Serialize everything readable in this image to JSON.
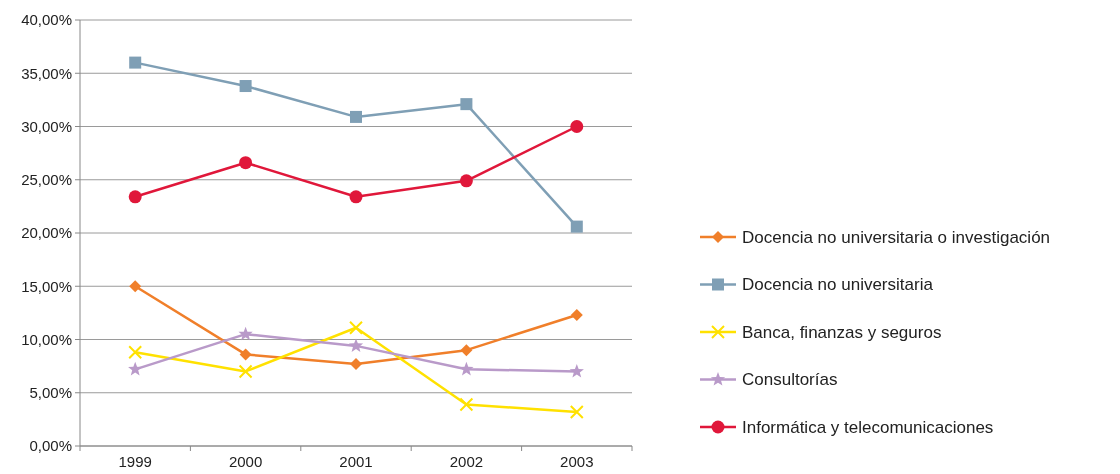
{
  "chart_data": {
    "type": "line",
    "categories": [
      "1999",
      "2000",
      "2001",
      "2002",
      "2003"
    ],
    "series": [
      {
        "name": "Docencia no universitaria o investigación",
        "color": "#f07f2a",
        "marker": "diamond",
        "values": [
          15.0,
          8.6,
          7.7,
          9.0,
          12.3
        ]
      },
      {
        "name": "Docencia no universitaria",
        "color": "#7f9fb5",
        "marker": "square",
        "values": [
          36.0,
          33.8,
          30.9,
          32.1,
          20.6
        ]
      },
      {
        "name": "Banca, finanzas y seguros",
        "color": "#ffe100",
        "marker": "cross",
        "values": [
          8.8,
          7.0,
          11.1,
          3.9,
          3.2
        ]
      },
      {
        "name": "Consultorías",
        "color": "#b99ac9",
        "marker": "star",
        "values": [
          7.2,
          10.5,
          9.4,
          7.2,
          7.0
        ]
      },
      {
        "name": "Informática y telecomunicaciones",
        "color": "#e0173a",
        "marker": "circle",
        "values": [
          23.4,
          26.6,
          23.4,
          24.9,
          30.0
        ]
      }
    ],
    "ylim": [
      0,
      40
    ],
    "yticks": [
      {
        "value": 0,
        "label": "0,00%"
      },
      {
        "value": 5,
        "label": "5,00%"
      },
      {
        "value": 10,
        "label": "10,00%"
      },
      {
        "value": 15,
        "label": "15,00%"
      },
      {
        "value": 20,
        "label": "20,00%"
      },
      {
        "value": 25,
        "label": "25,00%"
      },
      {
        "value": 30,
        "label": "30,00%"
      },
      {
        "value": 35,
        "label": "35,00%"
      },
      {
        "value": 40,
        "label": "40,00%"
      }
    ],
    "grid": "y",
    "legend": "right",
    "line_style": "solid"
  }
}
